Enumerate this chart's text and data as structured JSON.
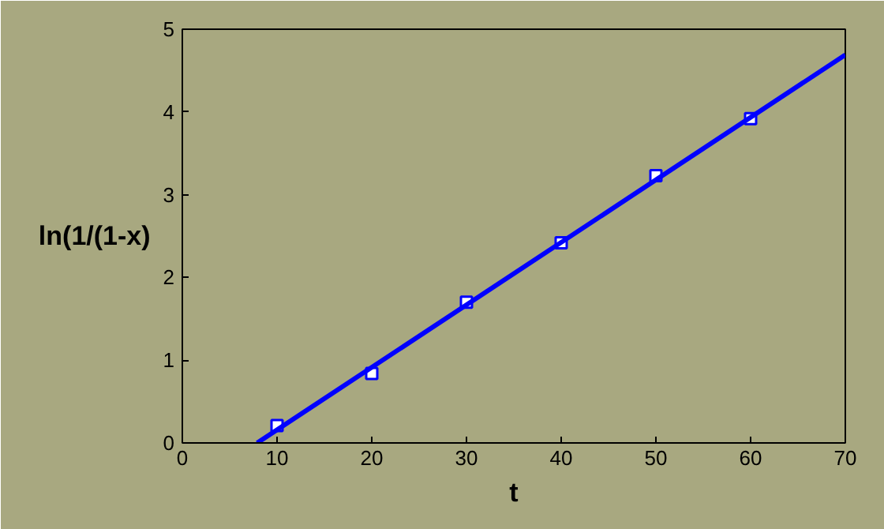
{
  "chart_data": {
    "type": "scatter",
    "xlabel": "t",
    "ylabel": "ln(1/(1-x)",
    "xlim": [
      0,
      70
    ],
    "ylim": [
      0,
      5
    ],
    "xticks": [
      0,
      10,
      20,
      30,
      40,
      50,
      60,
      70
    ],
    "yticks": [
      0,
      1,
      2,
      3,
      4,
      5
    ],
    "grid": false,
    "series": [
      {
        "color": "#0000ff",
        "marker": "square",
        "x": [
          10,
          20,
          30,
          40,
          50,
          60
        ],
        "values": [
          0.21,
          0.84,
          1.7,
          2.42,
          3.23,
          3.92
        ]
      },
      {
        "type": "line",
        "marker": "none",
        "color": "#0000ff",
        "x": [
          7.9,
          70
        ],
        "values": [
          0,
          4.69
        ]
      }
    ]
  }
}
